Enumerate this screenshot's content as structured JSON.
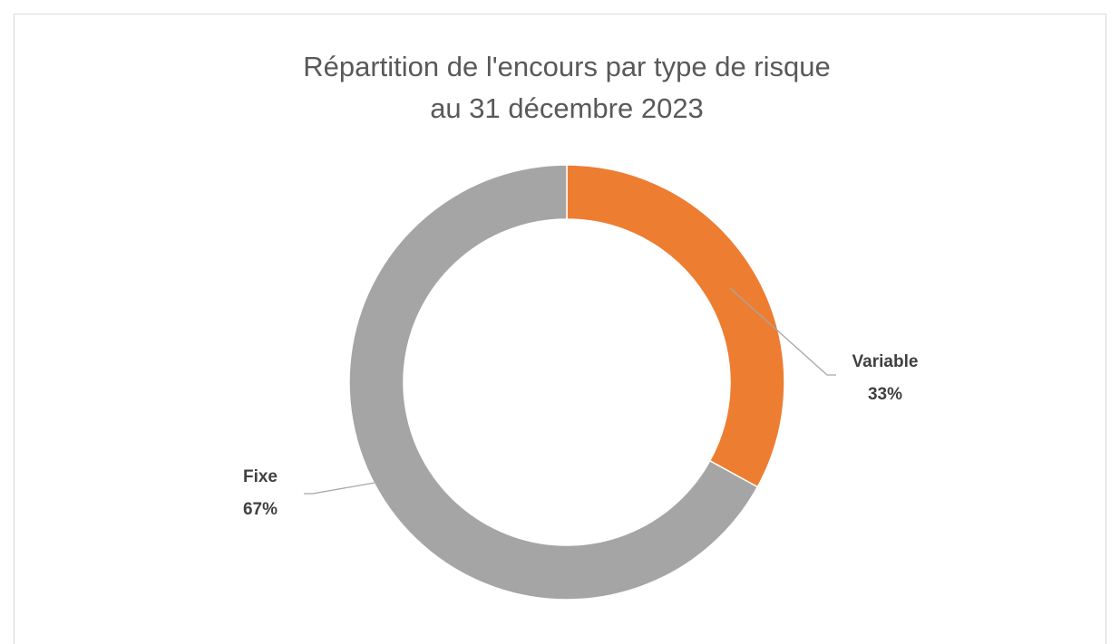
{
  "chart_data": {
    "type": "donut",
    "title": [
      "Répartition de l'encours par type de risque",
      "au 31 décembre 2023"
    ],
    "categories": [
      "Variable",
      "Fixe"
    ],
    "values": [
      33,
      67
    ],
    "value_labels": [
      "33%",
      "67%"
    ],
    "colors": [
      "#ed7d31",
      "#a5a5a5"
    ]
  }
}
